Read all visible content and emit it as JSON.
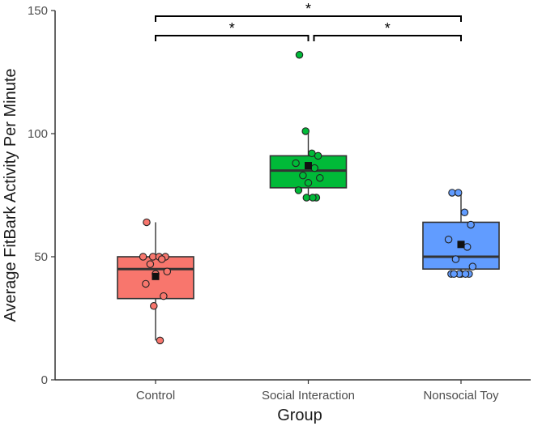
{
  "chart_data": {
    "type": "box",
    "xlabel": "Group",
    "ylabel": "Average FitBark Activity Per Minute",
    "ylim": [
      0,
      150
    ],
    "yticks": [
      0,
      50,
      100,
      150
    ],
    "grid": false,
    "categories": [
      "Control",
      "Social Interaction",
      "Nonsocial Toy"
    ],
    "series": [
      {
        "category": "Control",
        "color": "#f8766d",
        "box": {
          "q1": 33,
          "median": 45,
          "q3": 50,
          "whisker_low": 16,
          "whisker_high": 64
        },
        "mean": 42,
        "points": [
          64,
          50,
          50,
          50,
          50,
          49,
          47,
          44,
          43,
          39,
          34,
          30,
          16
        ]
      },
      {
        "category": "Social Interaction",
        "color": "#00ba38",
        "box": {
          "q1": 78,
          "median": 85,
          "q3": 91,
          "whisker_low": 73,
          "whisker_high": 101
        },
        "mean": 87,
        "points": [
          132,
          101,
          92,
          91,
          88,
          86,
          83,
          82,
          80,
          77,
          74,
          74,
          74
        ]
      },
      {
        "category": "Nonsocial Toy",
        "color": "#619cff",
        "box": {
          "q1": 45,
          "median": 50,
          "q3": 64,
          "whisker_low": 43,
          "whisker_high": 76
        },
        "mean": 55,
        "points": [
          76,
          76,
          68,
          63,
          57,
          54,
          49,
          46,
          43,
          43,
          43,
          43,
          43,
          43
        ]
      }
    ],
    "significance": [
      {
        "from": "Control",
        "to": "Nonsocial Toy",
        "label": "*",
        "level": 2
      },
      {
        "from": "Control",
        "to": "Social Interaction",
        "label": "*",
        "level": 1
      },
      {
        "from": "Social Interaction",
        "to": "Nonsocial Toy",
        "label": "*",
        "level": 1
      }
    ]
  }
}
